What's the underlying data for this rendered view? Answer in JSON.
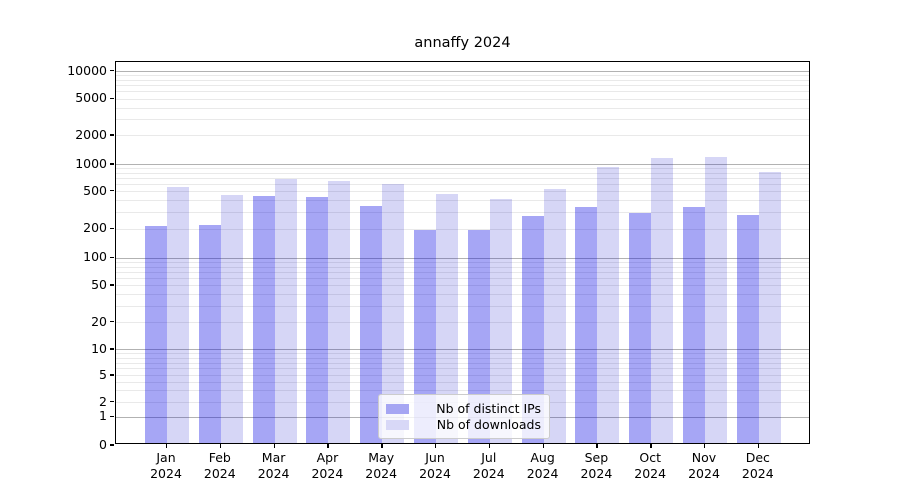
{
  "title": "annaffy 2024",
  "legend": {
    "items": [
      {
        "label": "Nb of distinct IPs",
        "color": "#a6a6f3"
      },
      {
        "label": "Nb of downloads",
        "color": "#d8d8f7"
      }
    ]
  },
  "x_axis": {
    "months": [
      "Jan",
      "Feb",
      "Mar",
      "Apr",
      "May",
      "Jun",
      "Jul",
      "Aug",
      "Sep",
      "Oct",
      "Nov",
      "Dec"
    ],
    "year": "2024"
  },
  "chart_data": {
    "type": "bar",
    "title": "annaffy 2024",
    "categories": [
      "Jan 2024",
      "Feb 2024",
      "Mar 2024",
      "Apr 2024",
      "May 2024",
      "Jun 2024",
      "Jul 2024",
      "Aug 2024",
      "Sep 2024",
      "Oct 2024",
      "Nov 2024",
      "Dec 2024"
    ],
    "series": [
      {
        "name": "Nb of distinct IPs",
        "values": [
          205,
          209,
          420,
          410,
          330,
          185,
          184,
          259,
          322,
          280,
          322,
          268
        ]
      },
      {
        "name": "Nb of downloads",
        "values": [
          527,
          430,
          645,
          620,
          570,
          440,
          389,
          505,
          883,
          1100,
          1130,
          779
        ]
      }
    ],
    "xlabel": "",
    "ylabel": "",
    "yscale": "symlog",
    "y_ticks": [
      0,
      1,
      2,
      5,
      10,
      20,
      50,
      100,
      200,
      500,
      1000,
      2000,
      5000,
      10000
    ],
    "ylim": [
      0,
      13000
    ],
    "grid": "horizontal",
    "legend_position": "lower center"
  },
  "colors": {
    "bar_ips": "rgba(0,0,225,0.35)",
    "bar_downloads": "rgba(0,0,200,0.16)",
    "grid_major": "#b2b2b2",
    "grid_minor": "#e9e9e9",
    "axis": "#000000",
    "background": "#ffffff"
  }
}
